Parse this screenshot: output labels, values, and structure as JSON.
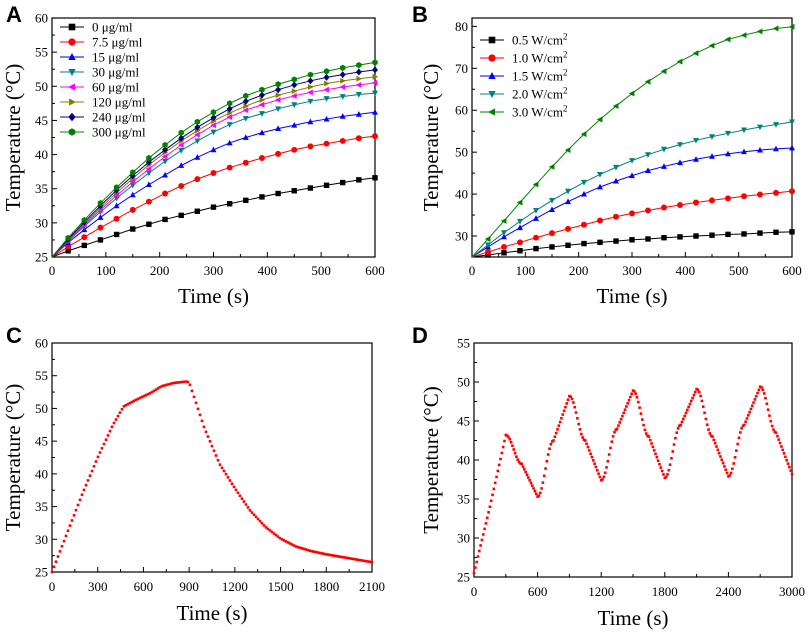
{
  "chart_data": [
    {
      "id": "A",
      "panel_label": "A",
      "type": "line",
      "xlabel": "Time (s)",
      "ylabel": "Temperature (°C)",
      "xlim": [
        0,
        600
      ],
      "ylim": [
        25,
        60
      ],
      "xticks": [
        "0",
        "100",
        "200",
        "300",
        "400",
        "500",
        "600"
      ],
      "yticks": [
        "25",
        "30",
        "35",
        "40",
        "45",
        "50",
        "55",
        "60"
      ],
      "legend_position": "top-left",
      "x": [
        0,
        30,
        60,
        90,
        120,
        150,
        180,
        210,
        240,
        270,
        300,
        330,
        360,
        390,
        420,
        450,
        480,
        510,
        540,
        570,
        600
      ],
      "series": [
        {
          "name": "0   μg/ml",
          "color": "#000000",
          "marker": "square",
          "values": [
            25,
            25.9,
            26.7,
            27.5,
            28.3,
            29.1,
            29.8,
            30.5,
            31.1,
            31.7,
            32.3,
            32.8,
            33.3,
            33.8,
            34.3,
            34.7,
            35.1,
            35.5,
            35.9,
            36.3,
            36.6
          ]
        },
        {
          "name": "7.5 μg/ml",
          "color": "#ff0000",
          "marker": "circle",
          "values": [
            25,
            26.5,
            27.9,
            29.3,
            30.6,
            31.9,
            33.1,
            34.3,
            35.4,
            36.4,
            37.3,
            38.1,
            38.8,
            39.5,
            40.1,
            40.7,
            41.2,
            41.6,
            42,
            42.4,
            42.7
          ]
        },
        {
          "name": "15  μg/ml",
          "color": "#0000ff",
          "marker": "triangle-up",
          "values": [
            25,
            27.1,
            29,
            30.8,
            32.5,
            34.1,
            35.6,
            37,
            38.4,
            39.6,
            40.7,
            41.7,
            42.5,
            43.2,
            43.8,
            44.3,
            44.8,
            45.2,
            45.6,
            45.9,
            46.2
          ]
        },
        {
          "name": "30  μg/ml",
          "color": "#008080",
          "marker": "triangle-down",
          "values": [
            25,
            27.3,
            29.5,
            31.6,
            33.6,
            35.5,
            37.3,
            39,
            40.6,
            42,
            43.3,
            44.4,
            45.3,
            46,
            46.7,
            47.3,
            47.8,
            48.2,
            48.5,
            48.8,
            49
          ]
        },
        {
          "name": "60  μg/ml",
          "color": "#ff00ff",
          "marker": "triangle-left",
          "values": [
            25,
            27.4,
            29.7,
            31.9,
            34,
            36,
            37.9,
            39.7,
            41.4,
            42.9,
            44.3,
            45.5,
            46.5,
            47.3,
            48,
            48.6,
            49.1,
            49.5,
            49.9,
            50.2,
            50.5
          ]
        },
        {
          "name": "120 μg/ml",
          "color": "#808000",
          "marker": "triangle-right",
          "values": [
            25,
            27.5,
            29.9,
            32.2,
            34.4,
            36.5,
            38.5,
            40.3,
            42,
            43.5,
            44.9,
            46.1,
            47.1,
            48,
            48.7,
            49.3,
            49.9,
            50.4,
            50.8,
            51.1,
            51.4
          ]
        },
        {
          "name": "240 μg/ml",
          "color": "#000080",
          "marker": "diamond",
          "values": [
            25,
            27.6,
            30.1,
            32.5,
            34.8,
            36.9,
            38.9,
            40.7,
            42.4,
            44,
            45.4,
            46.7,
            47.8,
            48.7,
            49.5,
            50.2,
            50.8,
            51.3,
            51.7,
            52.1,
            52.4
          ]
        },
        {
          "name": "300 μg/ml",
          "color": "#008000",
          "marker": "hexagon",
          "values": [
            25,
            27.8,
            30.4,
            32.9,
            35.2,
            37.4,
            39.5,
            41.4,
            43.2,
            44.8,
            46.2,
            47.5,
            48.6,
            49.5,
            50.3,
            51,
            51.7,
            52.2,
            52.7,
            53.1,
            53.5
          ]
        }
      ]
    },
    {
      "id": "B",
      "panel_label": "B",
      "type": "line",
      "xlabel": "Time (s)",
      "ylabel": "Temperature (°C)",
      "xlim": [
        0,
        600
      ],
      "ylim": [
        25,
        82
      ],
      "xticks": [
        "0",
        "100",
        "200",
        "300",
        "400",
        "500",
        "600"
      ],
      "yticks": [
        "30",
        "40",
        "50",
        "60",
        "70",
        "80"
      ],
      "legend_position": "top-left",
      "x": [
        0,
        30,
        60,
        90,
        120,
        150,
        180,
        210,
        240,
        270,
        300,
        330,
        360,
        390,
        420,
        450,
        480,
        510,
        540,
        570,
        600
      ],
      "series": [
        {
          "name": "0.5 W/cm",
          "sup": "2",
          "color": "#000000",
          "marker": "square",
          "values": [
            25,
            25.5,
            26,
            26.5,
            27,
            27.4,
            27.8,
            28.2,
            28.5,
            28.8,
            29.1,
            29.3,
            29.6,
            29.8,
            30,
            30.2,
            30.4,
            30.5,
            30.7,
            30.9,
            31
          ]
        },
        {
          "name": "1.0 W/cm",
          "sup": "2",
          "color": "#ff0000",
          "marker": "circle",
          "values": [
            25,
            26.2,
            27.4,
            28.5,
            29.6,
            30.7,
            31.7,
            32.7,
            33.7,
            34.6,
            35.4,
            36.1,
            36.8,
            37.4,
            38,
            38.5,
            39,
            39.5,
            39.9,
            40.3,
            40.7
          ]
        },
        {
          "name": "1.5 W/cm",
          "sup": "2",
          "color": "#0000ff",
          "marker": "triangle-up",
          "values": [
            25,
            27.4,
            29.8,
            32,
            34.2,
            36.3,
            38.2,
            40,
            41.7,
            43.1,
            44.4,
            45.6,
            46.6,
            47.5,
            48.3,
            49,
            49.6,
            50.1,
            50.5,
            50.8,
            51
          ]
        },
        {
          "name": "2.0 W/cm",
          "sup": "2",
          "color": "#008080",
          "marker": "triangle-down",
          "values": [
            25,
            27.9,
            30.8,
            33.5,
            36.1,
            38.5,
            40.7,
            42.8,
            44.7,
            46.4,
            48,
            49.4,
            50.7,
            51.8,
            52.8,
            53.7,
            54.5,
            55.3,
            56,
            56.6,
            57.2
          ]
        },
        {
          "name": "3.0 W/cm",
          "sup": "2",
          "color": "#008000",
          "marker": "triangle-left",
          "values": [
            25,
            29.3,
            33.6,
            38,
            42.3,
            46.5,
            50.5,
            54.3,
            57.8,
            61,
            64,
            66.8,
            69.3,
            71.6,
            73.6,
            75.4,
            76.9,
            77.9,
            78.8,
            79.5,
            79.9
          ]
        }
      ]
    },
    {
      "id": "C",
      "panel_label": "C",
      "type": "scatter",
      "xlabel": "Time (s)",
      "ylabel": "Temperature (°C)",
      "xlim": [
        0,
        2100
      ],
      "ylim": [
        25,
        60
      ],
      "xticks": [
        "0",
        "300",
        "600",
        "900",
        "1200",
        "1500",
        "1800",
        "2100"
      ],
      "yticks": [
        "25",
        "30",
        "35",
        "40",
        "45",
        "50",
        "55",
        "60"
      ],
      "color": "#ff0000",
      "profile": [
        [
          0,
          25
        ],
        [
          100,
          31
        ],
        [
          200,
          37
        ],
        [
          300,
          42.5
        ],
        [
          400,
          47.5
        ],
        [
          470,
          50.3
        ],
        [
          550,
          51.3
        ],
        [
          650,
          52.4
        ],
        [
          720,
          53.4
        ],
        [
          800,
          53.9
        ],
        [
          880,
          54.1
        ],
        [
          900,
          54
        ],
        [
          950,
          50.5
        ],
        [
          1000,
          47
        ],
        [
          1100,
          41.5
        ],
        [
          1200,
          37.8
        ],
        [
          1300,
          34.4
        ],
        [
          1400,
          31.9
        ],
        [
          1500,
          30.1
        ],
        [
          1600,
          28.9
        ],
        [
          1700,
          28.2
        ],
        [
          1800,
          27.7
        ],
        [
          1900,
          27.3
        ],
        [
          2000,
          26.9
        ],
        [
          2100,
          26.5
        ]
      ]
    },
    {
      "id": "D",
      "panel_label": "D",
      "type": "scatter",
      "xlabel": "Time (s)",
      "ylabel": "Temperature (°C)",
      "xlim": [
        0,
        3000
      ],
      "ylim": [
        25,
        55
      ],
      "xticks": [
        "0",
        "600",
        "1200",
        "1800",
        "2400",
        "3000"
      ],
      "yticks": [
        "25",
        "30",
        "35",
        "40",
        "45",
        "50",
        "55"
      ],
      "color": "#ff0000",
      "profile": [
        [
          0,
          25.5
        ],
        [
          150,
          34
        ],
        [
          300,
          43.2
        ],
        [
          450,
          39.5
        ],
        [
          600,
          35.3
        ],
        [
          750,
          42.5
        ],
        [
          900,
          48.2
        ],
        [
          1050,
          42.5
        ],
        [
          1200,
          37.4
        ],
        [
          1350,
          44
        ],
        [
          1500,
          48.9
        ],
        [
          1650,
          43
        ],
        [
          1800,
          37.7
        ],
        [
          1950,
          44.5
        ],
        [
          2100,
          49.1
        ],
        [
          2250,
          43
        ],
        [
          2400,
          37.9
        ],
        [
          2550,
          44.5
        ],
        [
          2700,
          49.4
        ],
        [
          2850,
          43.5
        ],
        [
          3000,
          38.2
        ]
      ]
    }
  ]
}
